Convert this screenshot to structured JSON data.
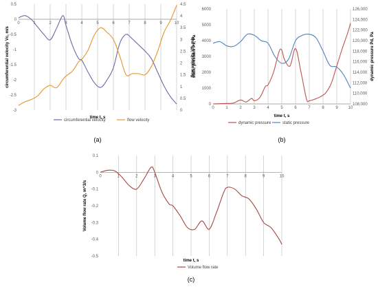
{
  "chart_data": [
    {
      "id": "a",
      "panel_label": "(a)",
      "type": "line",
      "xlabel": "time t, s",
      "xlim": [
        0,
        10
      ],
      "x_ticks": [
        "0",
        "1",
        "2",
        "3",
        "4",
        "5",
        "6",
        "7",
        "8",
        "9",
        "10"
      ],
      "grid": "vertical lines at each second",
      "legend_position": "bottom",
      "y_left": {
        "label": "circumferential velocity Vc, m/s",
        "ylim": [
          -3,
          0.5
        ],
        "ticks": [
          "0.5",
          "0",
          "-0.5",
          "-1",
          "-1.5",
          "-2",
          "-2.5",
          "-3"
        ],
        "tick_values": [
          0.5,
          0,
          -0.5,
          -1,
          -1.5,
          -2,
          -2.5,
          -3
        ]
      },
      "y_right": {
        "label": "flow velocity Vfl, m/s",
        "ylim": [
          0,
          4.5
        ],
        "ticks": [
          "4.5",
          "4",
          "3.5",
          "3",
          "2.5",
          "2",
          "1.5",
          "1",
          "0.5",
          "0"
        ],
        "tick_values": [
          4.5,
          4,
          3.5,
          3,
          2.5,
          2,
          1.5,
          1,
          0.5,
          0
        ]
      },
      "series": [
        {
          "name": "circumferential velocity",
          "axis": "left",
          "color": "#6a6aa8",
          "x": [
            0,
            0.4,
            0.8,
            1.2,
            1.6,
            2.0,
            2.4,
            2.8,
            3.0,
            3.4,
            3.8,
            4.0,
            4.4,
            4.8,
            5.2,
            5.6,
            6.0,
            6.4,
            6.8,
            7.2,
            7.6,
            8.0,
            8.4,
            8.8,
            9.2,
            9.6,
            10
          ],
          "y": [
            0.05,
            0.12,
            0.0,
            -0.25,
            -0.5,
            -0.68,
            -0.3,
            0.12,
            -0.2,
            -0.85,
            -1.3,
            -1.35,
            -1.75,
            -2.1,
            -2.25,
            -2.0,
            -1.6,
            -0.8,
            -0.5,
            -0.65,
            -0.85,
            -1.05,
            -1.3,
            -1.75,
            -2.2,
            -2.55,
            -2.8
          ]
        },
        {
          "name": "flow velocity",
          "axis": "right",
          "color": "#e6952a",
          "x": [
            0,
            0.4,
            0.8,
            1.2,
            1.6,
            2.0,
            2.4,
            2.8,
            3.0,
            3.4,
            3.8,
            4.0,
            4.4,
            4.8,
            5.2,
            5.6,
            6.0,
            6.4,
            6.8,
            7.2,
            7.6,
            8.0,
            8.4,
            8.8,
            9.2,
            9.6,
            10
          ],
          "y": [
            0.2,
            0.35,
            0.45,
            0.6,
            0.9,
            1.05,
            0.95,
            1.3,
            1.45,
            1.65,
            2.05,
            2.15,
            2.55,
            3.2,
            3.5,
            3.3,
            3.0,
            2.3,
            1.5,
            1.55,
            1.55,
            1.5,
            1.85,
            2.5,
            3.3,
            3.8,
            4.45
          ]
        }
      ]
    },
    {
      "id": "b",
      "panel_label": "(b)",
      "type": "line",
      "xlabel": "time t, s",
      "xlim": [
        0,
        10
      ],
      "x_ticks": [
        "0",
        "1",
        "2",
        "3",
        "4",
        "5",
        "6",
        "7",
        "8",
        "9",
        "10"
      ],
      "grid": "vertical lines at each second",
      "legend_position": "bottom",
      "y_left": {
        "label": "static pressure Ps, Pa",
        "ylim": [
          0,
          6000
        ],
        "ticks": [
          "6000",
          "5000",
          "4000",
          "3000",
          "2000",
          "1000",
          "0"
        ],
        "tick_values": [
          6000,
          5000,
          4000,
          3000,
          2000,
          1000,
          0
        ]
      },
      "y_right": {
        "label": "dynamic pressure Pd, Pa",
        "ylim": [
          108000,
          126000
        ],
        "ticks": [
          "126,000",
          "124,000",
          "122,000",
          "120,000",
          "118,000",
          "116,000",
          "114,000",
          "112,000",
          "110,000",
          "108,000"
        ],
        "tick_values": [
          126000,
          124000,
          122000,
          120000,
          118000,
          116000,
          114000,
          112000,
          110000,
          108000
        ]
      },
      "series": [
        {
          "name": "dynamic pressure",
          "axis": "left",
          "color": "#c0504d",
          "x": [
            0,
            0.5,
            1.0,
            1.5,
            2.0,
            2.4,
            2.8,
            3.0,
            3.4,
            3.8,
            4.0,
            4.4,
            4.8,
            5.0,
            5.2,
            5.6,
            6.0,
            6.4,
            6.8,
            7.0,
            7.4,
            7.8,
            8.2,
            8.6,
            9.0,
            9.4,
            9.8,
            10
          ],
          "y": [
            0,
            20,
            30,
            60,
            250,
            120,
            350,
            200,
            400,
            1100,
            1200,
            2000,
            3300,
            3400,
            2800,
            2400,
            3500,
            2000,
            300,
            200,
            300,
            450,
            700,
            1300,
            2400,
            3500,
            4500,
            5100
          ]
        },
        {
          "name": "static pressure",
          "axis": "right",
          "color": "#4f81bd",
          "x": [
            0,
            0.5,
            1.0,
            1.5,
            2.0,
            2.5,
            3.0,
            3.5,
            4.0,
            4.5,
            5.0,
            5.5,
            6.0,
            6.5,
            7.0,
            7.5,
            8.0,
            8.5,
            9.0,
            9.5,
            10
          ],
          "y": [
            119500,
            119800,
            119000,
            118900,
            119800,
            121200,
            121000,
            120000,
            119500,
            117000,
            115700,
            116500,
            120000,
            121000,
            121200,
            120500,
            118000,
            115300,
            115000,
            113500,
            111000
          ]
        }
      ]
    },
    {
      "id": "c",
      "panel_label": "(c)",
      "type": "line",
      "xlabel": "time t, s",
      "xlim": [
        0,
        10
      ],
      "x_ticks": [
        "0",
        "1",
        "2",
        "3",
        "4",
        "5",
        "6",
        "7",
        "8",
        "9",
        "10"
      ],
      "grid": "vertical lines at each second",
      "legend_position": "bottom",
      "y_left": {
        "label": "Volume flow rate Q, m^3/s",
        "ylim": [
          -0.5,
          0.1
        ],
        "ticks": [
          "0.1",
          "0",
          "-0.1",
          "-0.2",
          "-0.3",
          "-0.4",
          "-0.5"
        ],
        "tick_values": [
          0.1,
          0,
          -0.1,
          -0.2,
          -0.3,
          -0.4,
          -0.5
        ]
      },
      "series": [
        {
          "name": "Volume flow rate",
          "axis": "left",
          "color": "#a94442",
          "x": [
            0,
            0.4,
            0.8,
            1.2,
            1.6,
            2.0,
            2.4,
            2.8,
            3.0,
            3.4,
            3.8,
            4.0,
            4.4,
            4.8,
            5.2,
            5.6,
            6.0,
            6.4,
            6.8,
            7.0,
            7.4,
            7.8,
            8.2,
            8.6,
            9.0,
            9.4,
            9.8,
            10
          ],
          "y": [
            0.0,
            0.012,
            0.008,
            -0.03,
            -0.08,
            -0.1,
            -0.04,
            0.03,
            0.0,
            -0.12,
            -0.19,
            -0.2,
            -0.26,
            -0.33,
            -0.34,
            -0.29,
            -0.34,
            -0.24,
            -0.12,
            -0.09,
            -0.1,
            -0.14,
            -0.16,
            -0.22,
            -0.3,
            -0.33,
            -0.39,
            -0.43
          ]
        }
      ]
    }
  ]
}
